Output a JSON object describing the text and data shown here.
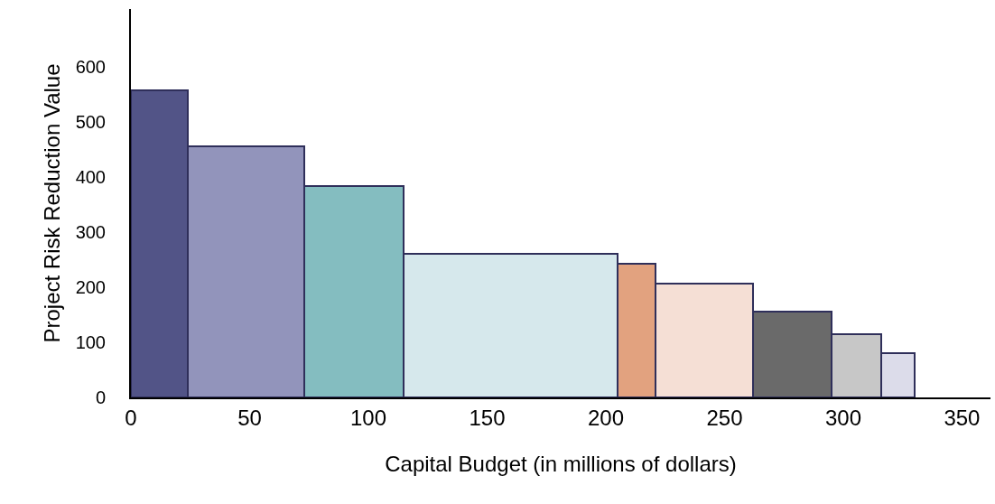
{
  "chart_data": {
    "type": "histogram",
    "xlabel": "Capital Budget (in millions of dollars)",
    "ylabel": "Project Risk Reduction Value",
    "bins": [
      0,
      24,
      73,
      115,
      205,
      221,
      262,
      295,
      316,
      330
    ],
    "values": [
      557,
      455,
      383,
      260,
      242,
      206,
      155,
      115,
      81
    ],
    "colors": [
      "#525487",
      "#9294bb",
      "#84bdc0",
      "#d6e8ec",
      "#e2a27f",
      "#f5dfd5",
      "#6a6a6a",
      "#c7c7c7",
      "#dcdcea"
    ],
    "xlim": [
      0,
      362
    ],
    "xticks": [
      0,
      50,
      100,
      150,
      200,
      250,
      300,
      350
    ],
    "ylim": [
      0,
      705
    ],
    "yticks": [
      0,
      100,
      200,
      300,
      400,
      500,
      600
    ]
  }
}
